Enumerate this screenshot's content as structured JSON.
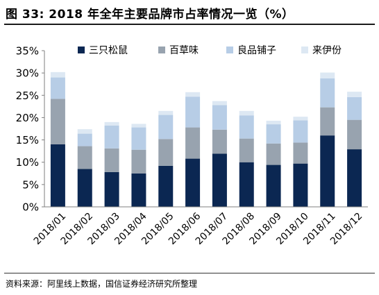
{
  "title": "图 33:  2018 年全年主要品牌市占率情况一览（%）",
  "source": "资料来源：阿里线上数据，国信证券经济研究所整理",
  "chart_data": {
    "type": "bar",
    "stacked": true,
    "categories": [
      "2018/01",
      "2018/02",
      "2018/03",
      "2018/04",
      "2018/05",
      "2018/06",
      "2018/07",
      "2018/08",
      "2018/09",
      "2018/10",
      "2018/11",
      "2018/12"
    ],
    "series": [
      {
        "name": "三只松鼠",
        "color": "#0b2752",
        "values": [
          14.0,
          8.5,
          7.8,
          7.5,
          9.2,
          10.8,
          11.9,
          10.0,
          9.4,
          9.7,
          16.0,
          12.9
        ]
      },
      {
        "name": "百草味",
        "color": "#98a3af",
        "values": [
          10.2,
          5.1,
          5.3,
          5.3,
          6.0,
          7.0,
          5.4,
          5.3,
          4.8,
          4.7,
          6.3,
          6.6
        ]
      },
      {
        "name": "良品铺子",
        "color": "#b7cde6",
        "values": [
          4.8,
          2.8,
          5.1,
          5.0,
          5.4,
          6.9,
          5.5,
          5.2,
          4.3,
          5.0,
          6.5,
          5.1
        ]
      },
      {
        "name": "来伊份",
        "color": "#dde8f3",
        "values": [
          1.2,
          1.0,
          0.8,
          0.8,
          0.9,
          1.0,
          0.9,
          1.0,
          0.8,
          0.8,
          1.3,
          1.2
        ]
      }
    ],
    "ylim": [
      0,
      35
    ],
    "yticks": [
      "0%",
      "5%",
      "10%",
      "15%",
      "20%",
      "25%",
      "30%",
      "35%"
    ],
    "ytick_values": [
      0,
      5,
      10,
      15,
      20,
      25,
      30,
      35
    ],
    "legend_position": "top",
    "grid": false
  }
}
